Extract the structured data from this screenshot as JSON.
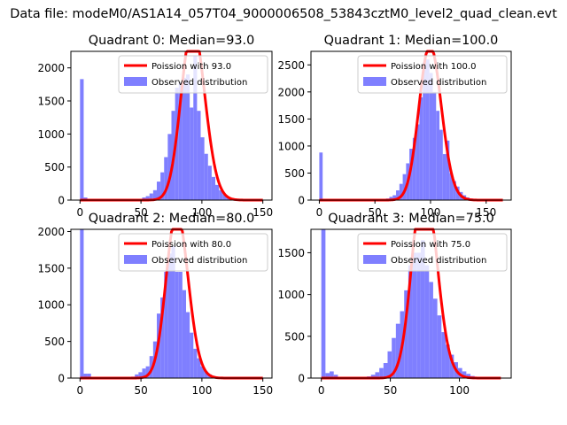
{
  "figure": {
    "suptitle": "Data file: modeM0/AS1A14_057T04_9000006508_53843cztM0_level2_quad_clean.evt"
  },
  "colors": {
    "poisson_line": "#ff0000",
    "histogram": "#7f7fff",
    "axis": "#000000"
  },
  "chart_data": [
    {
      "type": "bar",
      "title": "Quadrant 0: Median=93.0",
      "median": 93.0,
      "xlim": [
        -7.5,
        157.5
      ],
      "ylim": [
        0,
        2250
      ],
      "xticks": [
        0,
        50,
        100,
        150
      ],
      "yticks": [
        0,
        500,
        1000,
        1500,
        2000
      ],
      "bin_width": 3,
      "bin_starts": [
        0,
        3,
        6,
        42,
        45,
        48,
        51,
        54,
        57,
        60,
        63,
        66,
        69,
        72,
        75,
        78,
        81,
        84,
        87,
        90,
        93,
        96,
        99,
        102,
        105,
        108,
        111,
        114,
        117,
        120,
        123,
        126,
        129,
        132,
        135
      ],
      "counts": [
        1830,
        40,
        15,
        5,
        10,
        20,
        40,
        60,
        100,
        150,
        280,
        420,
        650,
        1000,
        1350,
        1700,
        1780,
        1850,
        1900,
        1400,
        2180,
        1350,
        950,
        700,
        520,
        350,
        230,
        150,
        90,
        50,
        30,
        15,
        10,
        5,
        3
      ],
      "poisson_lambda": 93.0,
      "poisson_xrange": [
        0,
        150
      ],
      "legend": [
        {
          "kind": "line",
          "label": "Poission with 93.0"
        },
        {
          "kind": "patch",
          "label": "Observed distribution"
        }
      ]
    },
    {
      "type": "bar",
      "title": "Quadrant 1: Median=100.0",
      "median": 100.0,
      "xlim": [
        -7.5,
        172.5
      ],
      "ylim": [
        0,
        2750
      ],
      "xticks": [
        0,
        50,
        100,
        150
      ],
      "yticks": [
        0,
        500,
        1000,
        1500,
        2000,
        2500
      ],
      "bin_width": 3,
      "bin_starts": [
        0,
        3,
        6,
        54,
        57,
        60,
        63,
        66,
        69,
        72,
        75,
        78,
        81,
        84,
        87,
        90,
        93,
        96,
        99,
        102,
        105,
        108,
        111,
        114,
        117,
        120,
        123,
        126,
        129,
        132,
        135,
        138
      ],
      "counts": [
        880,
        20,
        10,
        10,
        20,
        30,
        60,
        90,
        180,
        300,
        480,
        680,
        950,
        1150,
        1400,
        1900,
        2550,
        2600,
        2350,
        2000,
        1650,
        1300,
        850,
        1100,
        500,
        350,
        250,
        150,
        90,
        50,
        30,
        15
      ],
      "poisson_lambda": 100.0,
      "poisson_xrange": [
        0,
        165
      ],
      "legend": [
        {
          "kind": "line",
          "label": "Poission with 100.0"
        },
        {
          "kind": "patch",
          "label": "Observed distribution"
        }
      ]
    },
    {
      "type": "bar",
      "title": "Quadrant 2: Median=80.0",
      "median": 80.0,
      "xlim": [
        -7.5,
        157.5
      ],
      "ylim": [
        0,
        2030
      ],
      "xticks": [
        0,
        50,
        100,
        150
      ],
      "yticks": [
        0,
        500,
        1000,
        1500,
        2000
      ],
      "bin_width": 3,
      "bin_starts": [
        0,
        3,
        6,
        42,
        45,
        48,
        51,
        54,
        57,
        60,
        63,
        66,
        69,
        72,
        75,
        78,
        81,
        84,
        87,
        90,
        93,
        96,
        99,
        102,
        105,
        108,
        111,
        114
      ],
      "counts": [
        2030,
        60,
        60,
        20,
        50,
        80,
        130,
        160,
        300,
        500,
        880,
        1100,
        1450,
        1700,
        1800,
        1450,
        1450,
        1200,
        900,
        620,
        400,
        270,
        160,
        90,
        50,
        30,
        15,
        5
      ],
      "poisson_lambda": 80.0,
      "poisson_xrange": [
        0,
        150
      ],
      "legend": [
        {
          "kind": "line",
          "label": "Poission with 80.0"
        },
        {
          "kind": "patch",
          "label": "Observed distribution"
        }
      ]
    },
    {
      "type": "bar",
      "title": "Quadrant 3: Median=75.0",
      "median": 75.0,
      "xlim": [
        -7.5,
        137.5
      ],
      "ylim": [
        0,
        1780
      ],
      "xticks": [
        0,
        50,
        100
      ],
      "yticks": [
        0,
        500,
        1000,
        1500
      ],
      "bin_width": 3,
      "bin_starts": [
        0,
        3,
        6,
        9,
        33,
        36,
        39,
        42,
        45,
        48,
        51,
        54,
        57,
        60,
        63,
        66,
        69,
        72,
        75,
        78,
        81,
        84,
        87,
        90,
        93,
        96,
        99,
        102,
        105,
        108,
        111
      ],
      "counts": [
        1780,
        60,
        80,
        40,
        20,
        40,
        70,
        120,
        180,
        320,
        480,
        650,
        800,
        1050,
        1350,
        1500,
        1500,
        1650,
        1350,
        1150,
        950,
        750,
        550,
        400,
        280,
        190,
        120,
        80,
        50,
        25,
        10
      ],
      "poisson_lambda": 75.0,
      "poisson_xrange": [
        0,
        130
      ],
      "legend": [
        {
          "kind": "line",
          "label": "Poission with 75.0"
        },
        {
          "kind": "patch",
          "label": "Observed distribution"
        }
      ]
    }
  ]
}
